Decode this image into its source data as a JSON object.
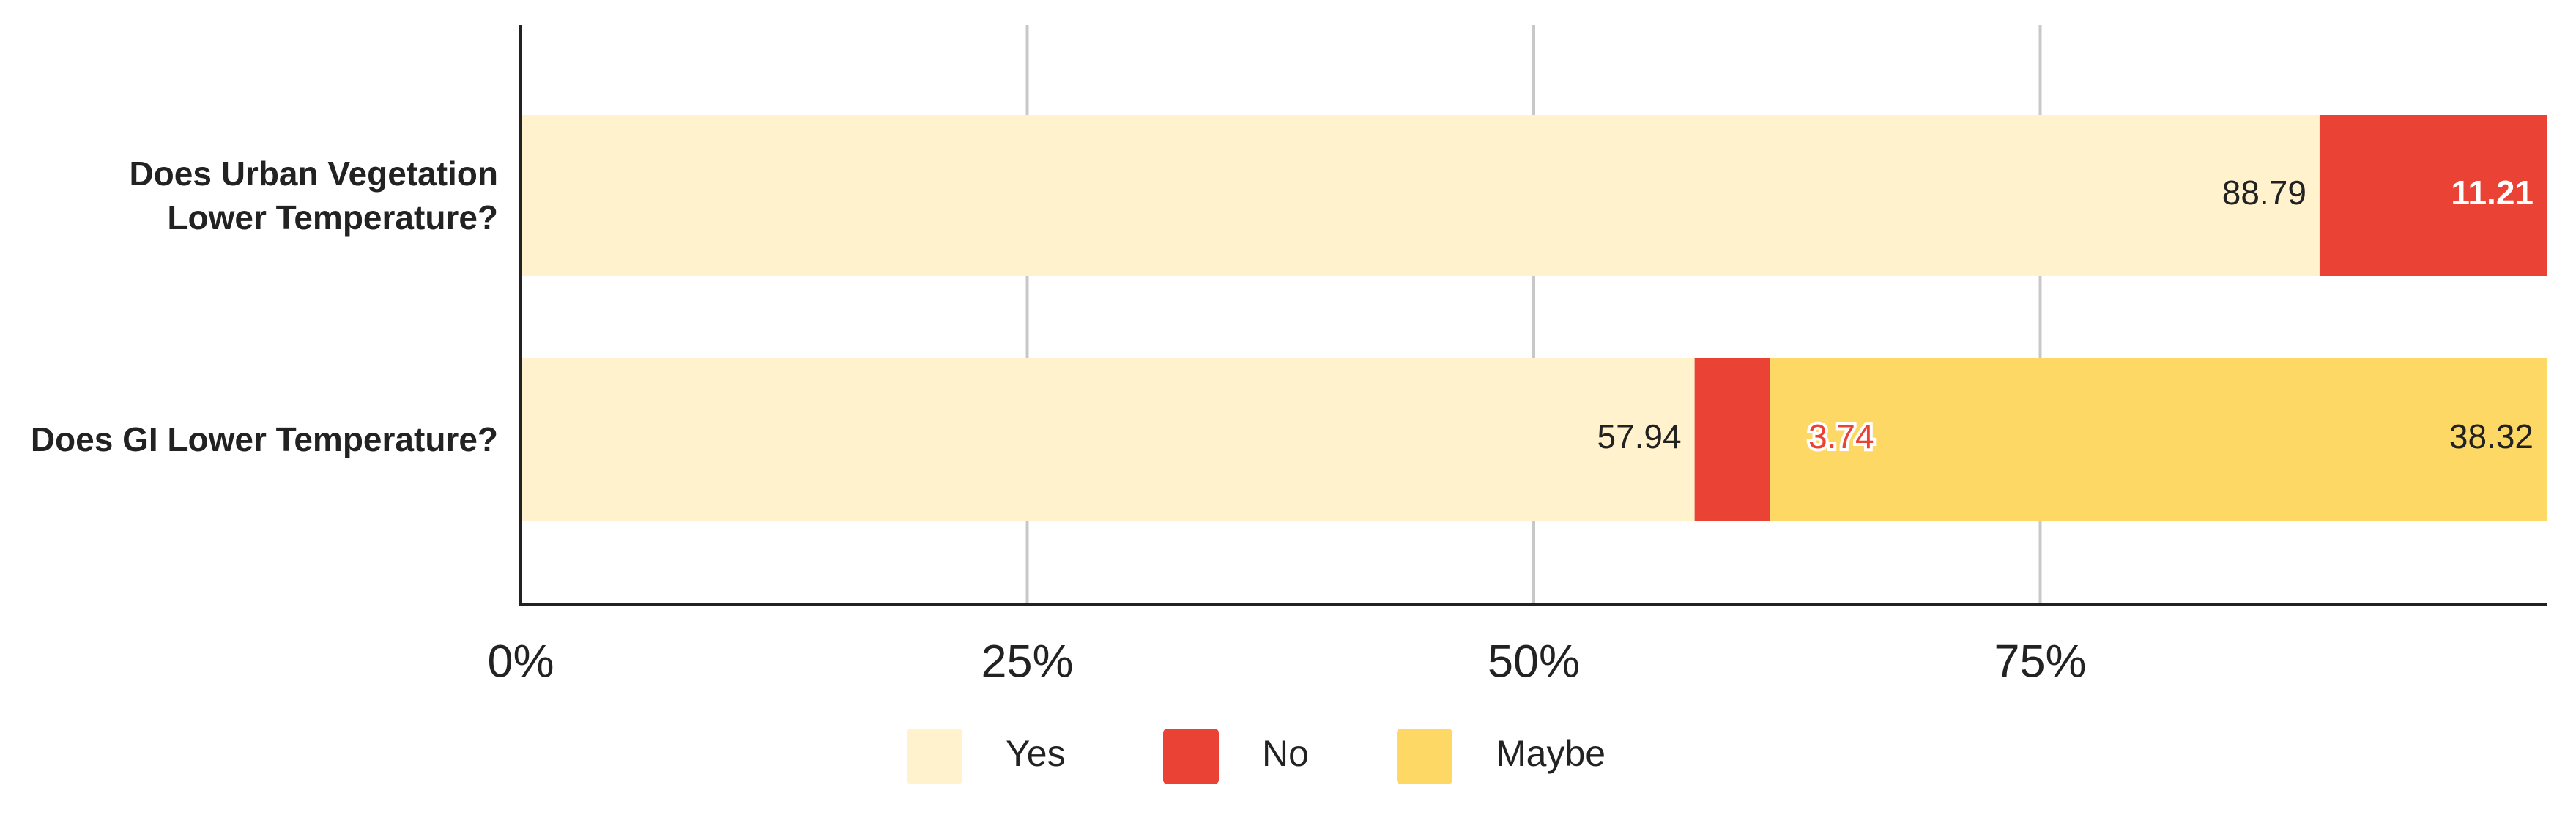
{
  "chart_data": {
    "type": "stacked-bar-horizontal",
    "categories": [
      "Does Urban Vegetation Lower Temperature?",
      "Does GI Lower Temperature?"
    ],
    "series": [
      {
        "name": "Yes",
        "color": "#fff2cc",
        "values": [
          88.79,
          57.94
        ]
      },
      {
        "name": "No",
        "color": "#ea4335",
        "values": [
          11.21,
          3.74
        ]
      },
      {
        "name": "Maybe",
        "color": "#fdd864",
        "values": [
          null,
          38.32
        ]
      }
    ],
    "xlim": [
      0,
      100
    ],
    "xticks": [
      {
        "value": 0,
        "label": "0%"
      },
      {
        "value": 25,
        "label": "25%"
      },
      {
        "value": 50,
        "label": "50%"
      },
      {
        "value": 75,
        "label": "75%"
      }
    ],
    "grid": true,
    "legend": "bottom"
  }
}
